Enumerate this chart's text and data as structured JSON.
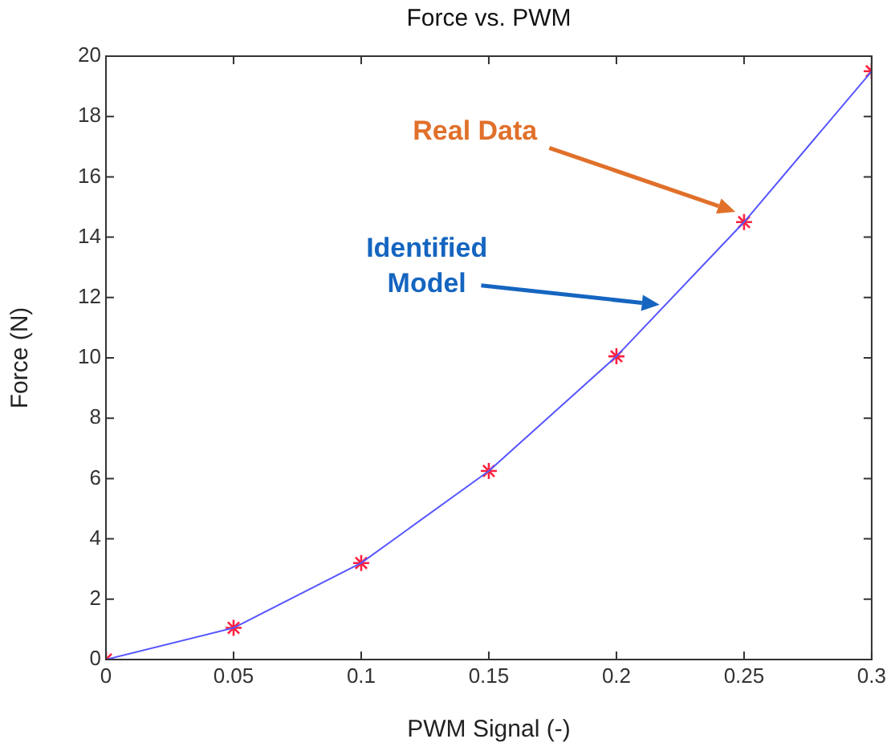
{
  "chart_data": {
    "type": "line",
    "title": "Force vs. PWM",
    "xlabel": "PWM Signal (-)",
    "ylabel": "Force (N)",
    "x": [
      0,
      0.05,
      0.1,
      0.15,
      0.2,
      0.25,
      0.3
    ],
    "series": [
      {
        "type": "line",
        "color": "#5555ff",
        "marker": "none",
        "values": [
          0,
          1.05,
          3.2,
          6.25,
          10.05,
          14.5,
          19.5
        ]
      },
      {
        "type": "scatter",
        "color": "#ff2040",
        "marker": "cross",
        "values": [
          0,
          1.05,
          3.2,
          6.25,
          10.05,
          14.5,
          19.5
        ]
      }
    ],
    "annotations": [
      "Identified Model",
      "Real Data"
    ],
    "xlim": [
      0,
      0.3
    ],
    "xticks": [
      0,
      0.05,
      0.1,
      0.15,
      0.2,
      0.25,
      0.3
    ],
    "ylim": [
      0,
      20
    ],
    "yticks": [
      0,
      2,
      4,
      6,
      8,
      10,
      12,
      14,
      16,
      18,
      20
    ],
    "grid": false,
    "legend": false
  }
}
